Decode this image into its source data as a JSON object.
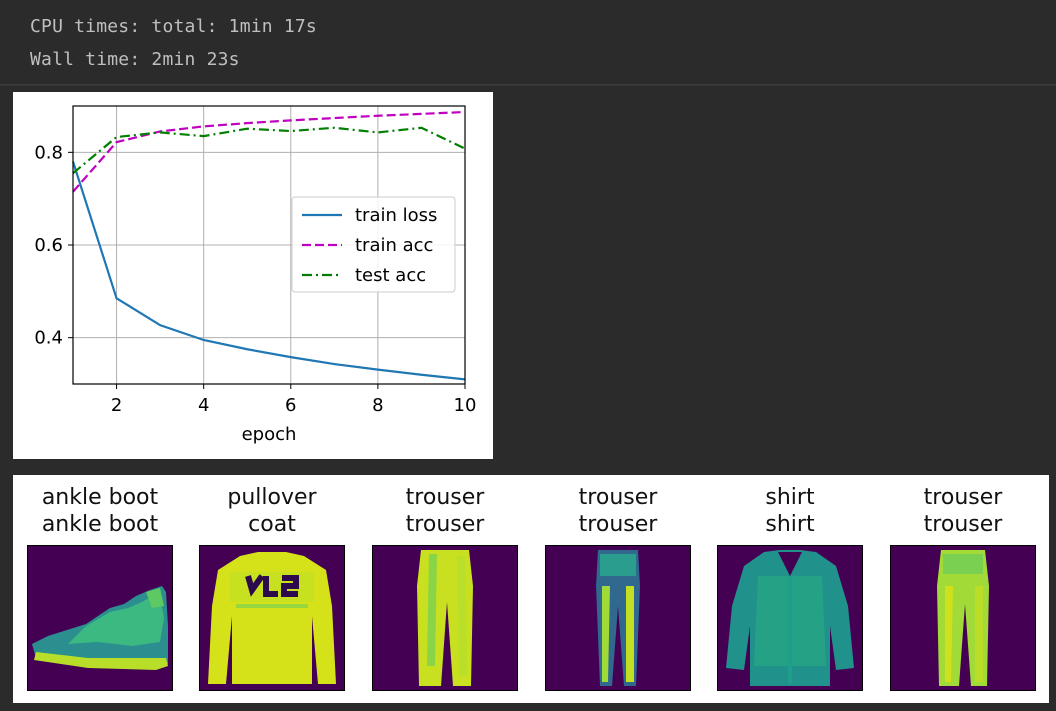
{
  "console": {
    "line1": "CPU times: total: 1min 17s",
    "line2": "Wall time: 2min 23s"
  },
  "chart_data": {
    "type": "line",
    "xlabel": "epoch",
    "ylabel": "",
    "xlim": [
      1,
      10
    ],
    "ylim": [
      0.3,
      0.9
    ],
    "xticks": [
      2,
      4,
      6,
      8,
      10
    ],
    "yticks": [
      0.4,
      0.6,
      0.8
    ],
    "grid": true,
    "legend_position": "center-right",
    "x": [
      1,
      2,
      3,
      4,
      5,
      6,
      7,
      8,
      9,
      10
    ],
    "series": [
      {
        "name": "train loss",
        "color": "#1f77b4",
        "style": "solid",
        "values": [
          0.78,
          0.485,
          0.427,
          0.395,
          0.375,
          0.358,
          0.343,
          0.331,
          0.32,
          0.31
        ]
      },
      {
        "name": "train acc",
        "color": "#bf00bf",
        "style": "dashed",
        "values": [
          0.715,
          0.822,
          0.845,
          0.856,
          0.863,
          0.869,
          0.874,
          0.879,
          0.883,
          0.887
        ]
      },
      {
        "name": "test acc",
        "color": "#007f00",
        "style": "dashdot",
        "values": [
          0.755,
          0.833,
          0.843,
          0.835,
          0.851,
          0.846,
          0.853,
          0.843,
          0.853,
          0.808
        ]
      }
    ]
  },
  "predictions": [
    {
      "true_label": "ankle boot",
      "pred_label": "ankle boot",
      "icon": "ankle-boot-icon"
    },
    {
      "true_label": "pullover",
      "pred_label": "coat",
      "icon": "pullover-icon"
    },
    {
      "true_label": "trouser",
      "pred_label": "trouser",
      "icon": "trouser-icon"
    },
    {
      "true_label": "trouser",
      "pred_label": "trouser",
      "icon": "trouser-icon"
    },
    {
      "true_label": "shirt",
      "pred_label": "shirt",
      "icon": "shirt-icon"
    },
    {
      "true_label": "trouser",
      "pred_label": "trouser",
      "icon": "trouser-icon"
    }
  ],
  "colors": {
    "background": "#2b2b2b",
    "console_text": "#bfbfbf",
    "image_bg": "#440154",
    "image_fg_bright": "#d5e21a",
    "image_fg_mid": "#2a9d8f"
  }
}
